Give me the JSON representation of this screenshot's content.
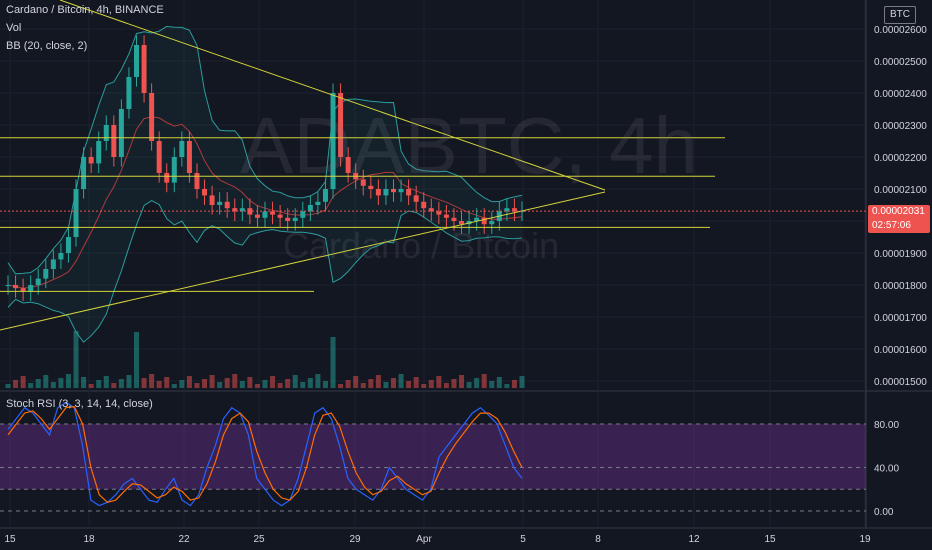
{
  "header": {
    "symbol_line": "Cardano / Bitcoin, 4h, BINANCE",
    "vol_label": "Vol",
    "bb_label": "BB (20, close, 2)",
    "currency_badge": "BTC"
  },
  "watermark": {
    "ticker": "ADABTC, 4h",
    "name": "Cardano / Bitcoin"
  },
  "price_badge": {
    "price": "0.00002031",
    "countdown": "02:57:06"
  },
  "stoch_label": "Stoch RSI (3, 3, 14, 14, close)",
  "colors": {
    "up": "#26a69a",
    "down": "#ef5350",
    "trendline": "#d4d43a",
    "bb": "#2a9d9d",
    "bb_basis": "#b03a3a",
    "stoch_k": "#2962ff",
    "stoch_d": "#ff6d00",
    "stoch_band": "#5a2a7a"
  },
  "chart_data": {
    "type": "candlestick",
    "title": "Cardano / Bitcoin, 4h, BINANCE",
    "y_ticks": [
      "0.00002600",
      "0.00002500",
      "0.00002400",
      "0.00002300",
      "0.00002200",
      "0.00002100",
      "0.00002000",
      "0.00001900",
      "0.00001800",
      "0.00001700",
      "0.00001600",
      "0.00001500"
    ],
    "ylim": [
      1.5e-05,
      2.6e-05
    ],
    "x_ticks": [
      "15",
      "18",
      "22",
      "25",
      "29",
      "Apr",
      "5",
      "8",
      "12",
      "15",
      "19"
    ],
    "ohlc_close_approx": [
      1.8e-05,
      1.79e-05,
      1.78e-05,
      1.8e-05,
      1.82e-05,
      1.85e-05,
      1.88e-05,
      1.9e-05,
      1.95e-05,
      2.1e-05,
      2.2e-05,
      2.18e-05,
      2.25e-05,
      2.3e-05,
      2.2e-05,
      2.35e-05,
      2.45e-05,
      2.55e-05,
      2.4e-05,
      2.25e-05,
      2.15e-05,
      2.12e-05,
      2.2e-05,
      2.25e-05,
      2.15e-05,
      2.1e-05,
      2.08e-05,
      2.05e-05,
      2.06e-05,
      2.04e-05,
      2.03e-05,
      2.04e-05,
      2.02e-05,
      2.01e-05,
      2.03e-05,
      2.02e-05,
      2.01e-05,
      2e-05,
      2.01e-05,
      2.03e-05,
      2.05e-05,
      2.06e-05,
      2.1e-05,
      2.4e-05,
      2.2e-05,
      2.15e-05,
      2.13e-05,
      2.11e-05,
      2.1e-05,
      2.08e-05,
      2.1e-05,
      2.09e-05,
      2.1e-05,
      2.08e-05,
      2.06e-05,
      2.04e-05,
      2.03e-05,
      2.02e-05,
      2.01e-05,
      2e-05,
      1.99e-05,
      2e-05,
      2.01e-05,
      1.99e-05,
      2e-05,
      2.03e-05,
      2.04e-05,
      2.03e-05,
      2.031e-05
    ],
    "horizontal_levels": [
      2.26e-05,
      2.14e-05,
      1.98e-05,
      1.78e-05
    ],
    "triangle_upper": [
      [
        2.65e-05,
        2.07e-05
      ]
    ],
    "triangle_lower": [
      [
        1.71e-05,
        2.07e-05
      ]
    ],
    "current_price": 2.031e-05,
    "stoch_rsi": {
      "levels": [
        80.0,
        40.0,
        0.0
      ],
      "band": [
        20,
        80
      ],
      "k_approx": [
        75,
        85,
        95,
        90,
        80,
        70,
        95,
        100,
        95,
        60,
        10,
        5,
        8,
        15,
        25,
        30,
        20,
        10,
        8,
        20,
        30,
        10,
        5,
        15,
        40,
        60,
        85,
        95,
        90,
        70,
        30,
        20,
        10,
        5,
        10,
        30,
        60,
        90,
        95,
        85,
        60,
        30,
        20,
        15,
        10,
        20,
        40,
        30,
        20,
        15,
        10,
        20,
        50,
        60,
        70,
        80,
        90,
        95,
        88,
        80,
        60,
        40,
        30
      ],
      "d_approx": [
        70,
        80,
        90,
        92,
        85,
        75,
        85,
        95,
        96,
        80,
        40,
        15,
        8,
        10,
        18,
        25,
        24,
        18,
        12,
        15,
        22,
        18,
        10,
        12,
        25,
        45,
        70,
        85,
        90,
        82,
        55,
        35,
        20,
        12,
        10,
        18,
        40,
        70,
        88,
        90,
        78,
        55,
        35,
        22,
        15,
        18,
        28,
        32,
        25,
        20,
        15,
        18,
        35,
        50,
        62,
        72,
        82,
        90,
        90,
        85,
        72,
        55,
        40
      ]
    }
  }
}
